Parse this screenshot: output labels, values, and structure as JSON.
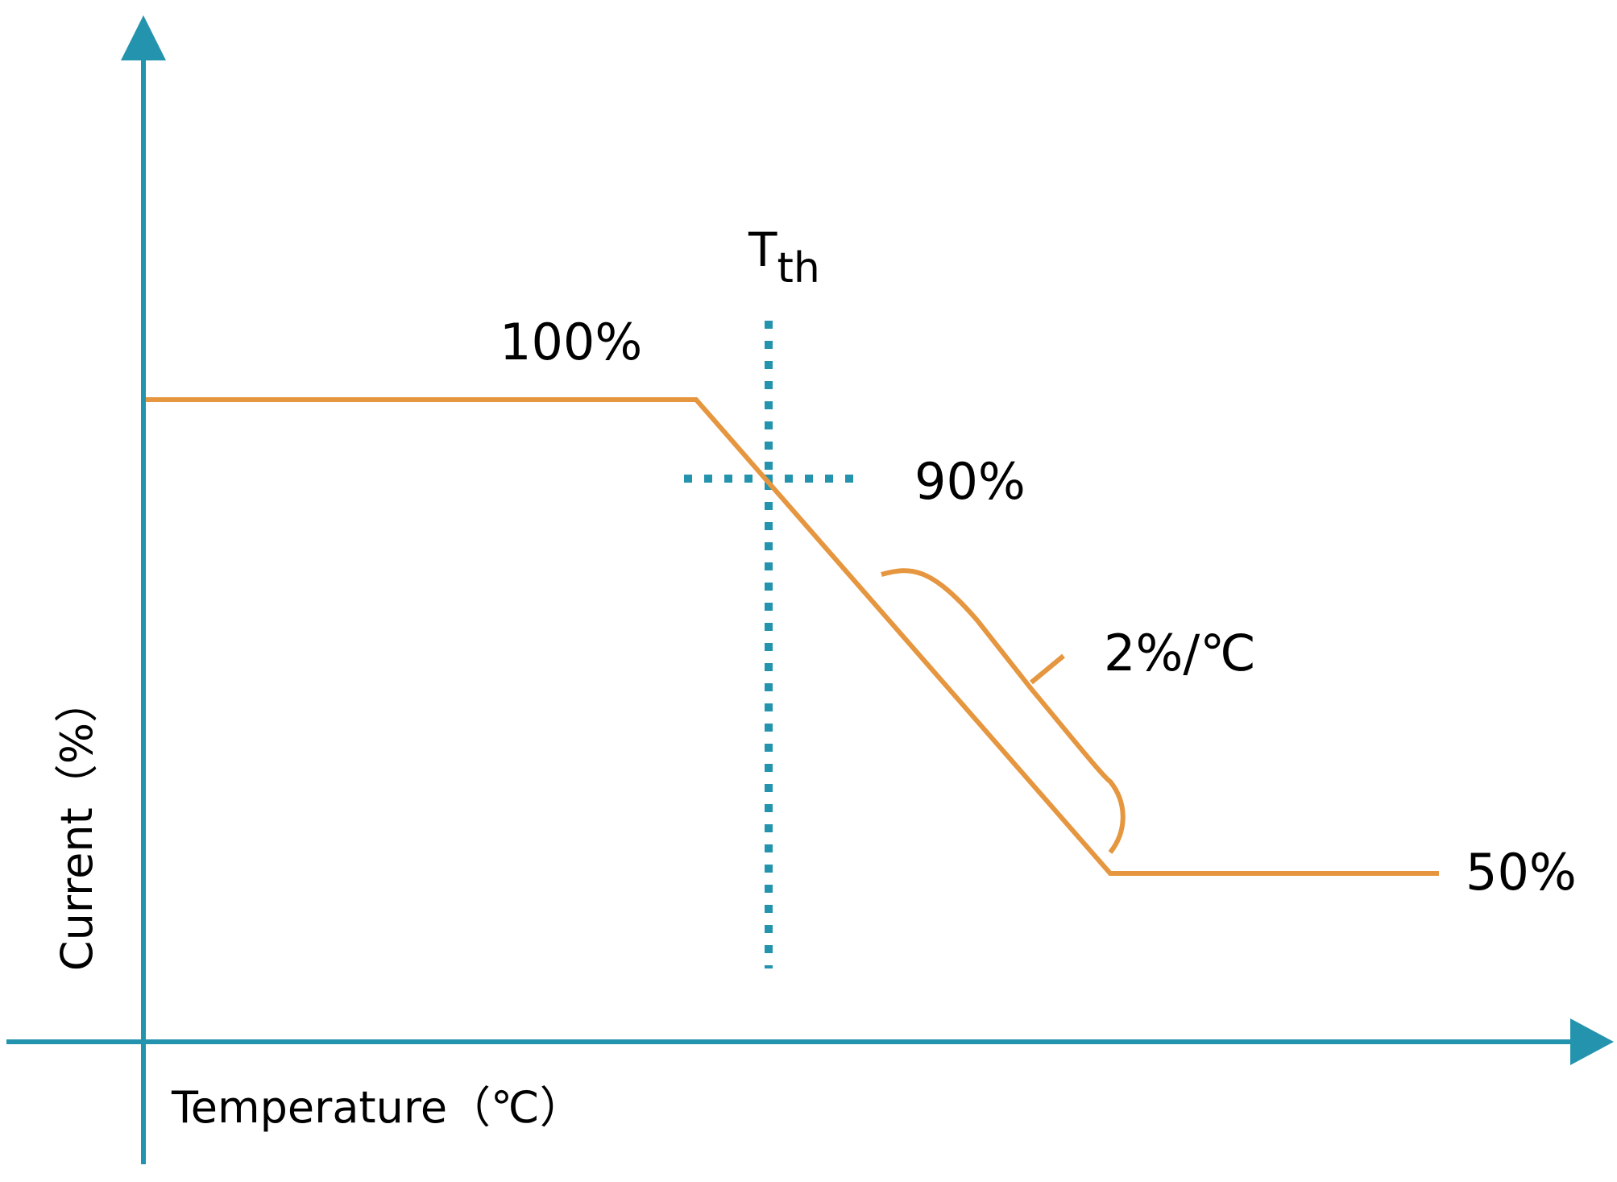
{
  "chart_data": {
    "type": "line",
    "title": "",
    "xlabel": "Temperature（℃）",
    "ylabel": "Current（%）",
    "grid": false,
    "legend": "none",
    "series": [
      {
        "values": [
          100,
          100,
          50,
          50
        ]
      }
    ],
    "threshold": {
      "label_main": "T",
      "label_sub": "th",
      "value_percent": 90
    },
    "annotations": {
      "top": "100%",
      "threshold": "90%",
      "slope": "2%/℃",
      "bottom": "50%"
    },
    "colors": {
      "axis": "#2494AE",
      "curve": "#E5963F",
      "threshold_line": "#2494AE"
    }
  }
}
